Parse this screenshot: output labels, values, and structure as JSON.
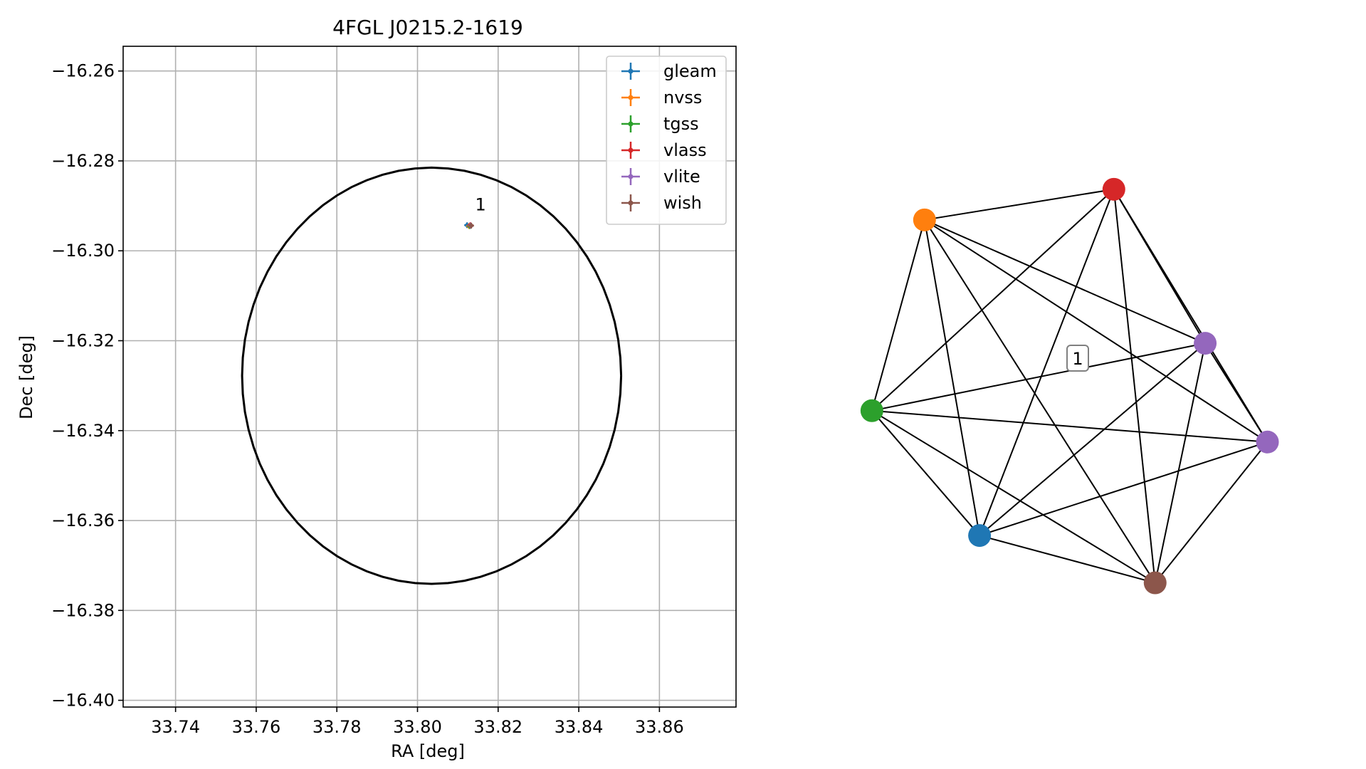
{
  "chart_data": [
    {
      "type": "scatter",
      "title": "4FGL J0215.2-1619",
      "xlabel": "RA [deg]",
      "ylabel": "Dec [deg]",
      "xlim": [
        33.727,
        33.879
      ],
      "ylim": [
        -16.4015,
        -16.2545
      ],
      "grid": true,
      "legend_position": "top-right",
      "x_ticks": [
        "33.74",
        "33.76",
        "33.78",
        "33.80",
        "33.82",
        "33.84",
        "33.86"
      ],
      "x_tick_values": [
        33.74,
        33.76,
        33.78,
        33.8,
        33.82,
        33.84,
        33.86
      ],
      "y_ticks": [
        "−16.26",
        "−16.28",
        "−16.30",
        "−16.32",
        "−16.34",
        "−16.36",
        "−16.38",
        "−16.40"
      ],
      "y_tick_values": [
        -16.26,
        -16.28,
        -16.3,
        -16.32,
        -16.34,
        -16.36,
        -16.38,
        -16.4
      ],
      "series": [
        {
          "name": "gleam",
          "color": "#1f77b4",
          "points": [
            {
              "x": 33.8123,
              "y": -16.2943,
              "xerr": 0.0006,
              "yerr": 0.0003
            }
          ]
        },
        {
          "name": "nvss",
          "color": "#ff7f0e",
          "points": [
            {
              "x": 33.8128,
              "y": -16.2945,
              "xerr": 0.0003,
              "yerr": 0.0003
            }
          ]
        },
        {
          "name": "tgss",
          "color": "#2ca02c",
          "points": [
            {
              "x": 33.813,
              "y": -16.2945,
              "xerr": 0.0003,
              "yerr": 0.0003
            }
          ]
        },
        {
          "name": "vlass",
          "color": "#d62728",
          "points": [
            {
              "x": 33.8131,
              "y": -16.2943,
              "xerr": 0.0001,
              "yerr": 0.0001
            }
          ]
        },
        {
          "name": "vlite",
          "color": "#9467bd",
          "points": [
            {
              "x": 33.8132,
              "y": -16.2944,
              "xerr": 0.0002,
              "yerr": 0.0002
            }
          ]
        },
        {
          "name": "wish",
          "color": "#8c564b",
          "points": [
            {
              "x": 33.8133,
              "y": -16.2944,
              "xerr": 0.0006,
              "yerr": 0.0004
            }
          ]
        }
      ],
      "ellipse": {
        "center": [
          33.8035,
          -16.3278
        ],
        "semi_axis_ra": 0.047,
        "semi_axis_dec": 0.0463,
        "color": "#000000"
      },
      "annotations": [
        {
          "text": "1",
          "x": 33.8143,
          "y": -16.291
        }
      ]
    },
    {
      "type": "network",
      "cluster_label": "1",
      "nodes": [
        {
          "id": "nvss",
          "color": "#ff7f0e"
        },
        {
          "id": "vlass",
          "color": "#d62728"
        },
        {
          "id": "vlite",
          "color": "#9467bd"
        },
        {
          "id": "vlite_2",
          "color": "#9467bd"
        },
        {
          "id": "wish",
          "color": "#8c564b"
        },
        {
          "id": "gleam",
          "color": "#1f77b4"
        },
        {
          "id": "tgss",
          "color": "#2ca02c"
        }
      ],
      "edges": "complete"
    }
  ]
}
